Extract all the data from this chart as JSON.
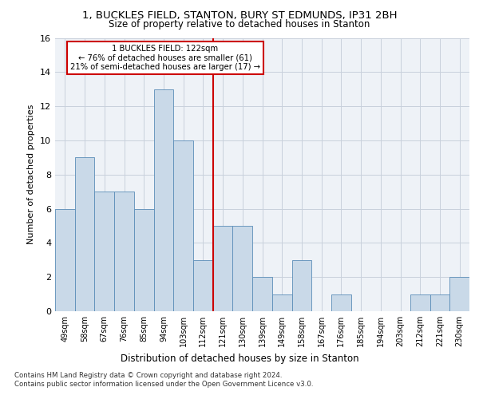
{
  "title1": "1, BUCKLES FIELD, STANTON, BURY ST EDMUNDS, IP31 2BH",
  "title2": "Size of property relative to detached houses in Stanton",
  "xlabel": "Distribution of detached houses by size in Stanton",
  "ylabel": "Number of detached properties",
  "categories": [
    "49sqm",
    "58sqm",
    "67sqm",
    "76sqm",
    "85sqm",
    "94sqm",
    "103sqm",
    "112sqm",
    "121sqm",
    "130sqm",
    "139sqm",
    "149sqm",
    "158sqm",
    "167sqm",
    "176sqm",
    "185sqm",
    "194sqm",
    "203sqm",
    "212sqm",
    "221sqm",
    "230sqm"
  ],
  "values": [
    6,
    9,
    7,
    7,
    6,
    13,
    10,
    3,
    5,
    5,
    2,
    1,
    3,
    0,
    1,
    0,
    0,
    0,
    1,
    1,
    2
  ],
  "bar_color": "#c9d9e8",
  "bar_edge_color": "#5b8db8",
  "annotation_title": "1 BUCKLES FIELD: 122sqm",
  "annotation_line1": "← 76% of detached houses are smaller (61)",
  "annotation_line2": "21% of semi-detached houses are larger (17) →",
  "annotation_box_color": "#ffffff",
  "annotation_box_edge": "#cc0000",
  "vline_color": "#cc0000",
  "ylim": [
    0,
    16
  ],
  "yticks": [
    0,
    2,
    4,
    6,
    8,
    10,
    12,
    14,
    16
  ],
  "footer1": "Contains HM Land Registry data © Crown copyright and database right 2024.",
  "footer2": "Contains public sector information licensed under the Open Government Licence v3.0.",
  "bg_color": "#eef2f7",
  "grid_color": "#c8d0dc"
}
